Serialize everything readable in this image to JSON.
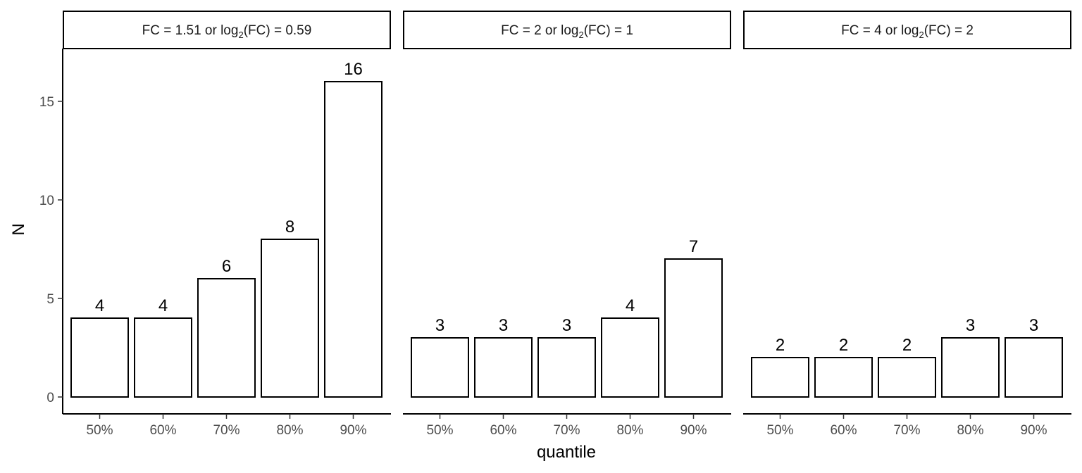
{
  "chart_data": {
    "type": "bar",
    "xlabel": "quantile",
    "ylabel": "N",
    "ylim": [
      0,
      17.5
    ],
    "yticks": [
      0,
      5,
      10,
      15
    ],
    "categories": [
      "50%",
      "60%",
      "70%",
      "80%",
      "90%"
    ],
    "bar_fill": "#ffffff",
    "bar_stroke": "#000000",
    "grid": false,
    "facets": [
      {
        "fc": "1.51",
        "log2": "0.59",
        "values": [
          4,
          4,
          6,
          8,
          16
        ]
      },
      {
        "fc": "2",
        "log2": "1",
        "values": [
          3,
          3,
          3,
          4,
          7
        ]
      },
      {
        "fc": "4",
        "log2": "2",
        "values": [
          2,
          2,
          2,
          3,
          3
        ]
      }
    ]
  }
}
